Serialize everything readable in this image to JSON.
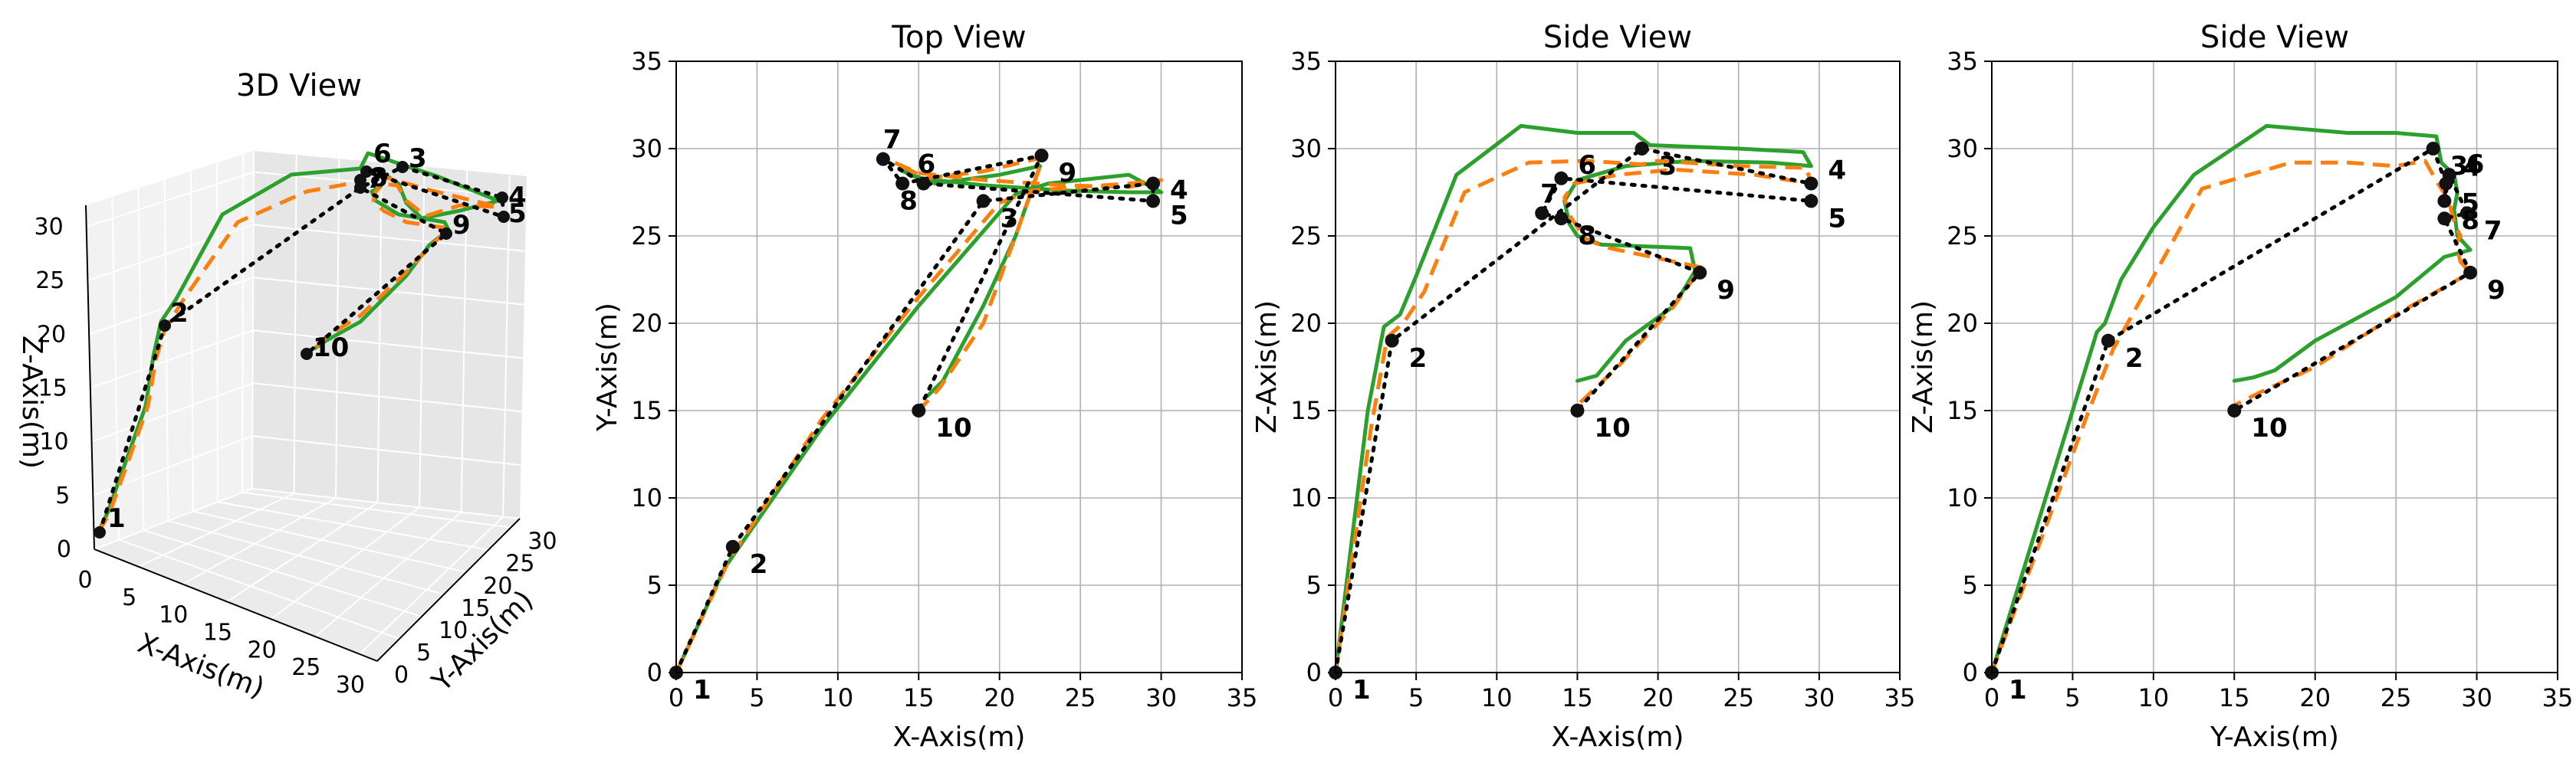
{
  "colors": {
    "reference": "#2ca02c",
    "estimate": "#ff7f0e",
    "waypoints": "#000000",
    "grid": "#b0b0b0"
  },
  "waypoint_labels": [
    "1",
    "2",
    "3",
    "4",
    "5",
    "6",
    "7",
    "8",
    "9",
    "10"
  ],
  "chart_data": [
    {
      "type": "line3d",
      "title": "3D View",
      "xlabel": "X-Axis(m)",
      "ylabel": "Y-Axis(m)",
      "zlabel": "Z-Axis(m)",
      "xticks": [
        "0",
        "5",
        "10",
        "15",
        "20",
        "25",
        "30"
      ],
      "yticks": [
        "0",
        "5",
        "10",
        "15",
        "20",
        "25",
        "30"
      ],
      "zticks": [
        "0",
        "5",
        "10",
        "15",
        "20",
        "25",
        "30"
      ],
      "xlim": [
        0,
        32
      ],
      "ylim": [
        0,
        32
      ],
      "zlim": [
        0,
        32
      ],
      "grid": true
    },
    {
      "type": "line",
      "title": "Top View",
      "xlabel": "X-Axis(m)",
      "ylabel": "Y-Axis(m)",
      "xticks": [
        "0",
        "5",
        "10",
        "15",
        "20",
        "25",
        "30",
        "35"
      ],
      "yticks": [
        "0",
        "5",
        "10",
        "15",
        "20",
        "25",
        "30",
        "35"
      ],
      "xlim": [
        0,
        35
      ],
      "ylim": [
        0,
        35
      ],
      "grid": true,
      "waypoints": [
        [
          0,
          0
        ],
        [
          3.5,
          7.2
        ],
        [
          19,
          27
        ],
        [
          29.5,
          28
        ],
        [
          29.5,
          27
        ],
        [
          15.3,
          28
        ],
        [
          12.8,
          29.4
        ],
        [
          14,
          28
        ],
        [
          22.6,
          29.6
        ],
        [
          15,
          15
        ]
      ],
      "series": [
        {
          "style": "solid",
          "x": [
            0,
            3,
            9,
            15,
            21,
            23,
            25,
            28,
            30,
            28,
            24,
            19,
            15,
            13.8,
            16,
            20,
            22.5,
            21,
            19,
            16.5,
            15.5
          ],
          "y": [
            0,
            6,
            14,
            21,
            27.4,
            28,
            28.2,
            28.5,
            27.5,
            27.5,
            27.6,
            27.9,
            28.3,
            28.8,
            28,
            28.5,
            29,
            25,
            21,
            16.7,
            15.8
          ]
        },
        {
          "style": "dashed",
          "x": [
            0,
            3.3,
            9,
            15,
            20,
            22,
            25,
            28,
            30,
            28,
            24,
            19,
            15,
            13.5,
            15.5,
            19,
            22.7,
            21,
            19,
            16.3,
            15.2
          ],
          "y": [
            0,
            6.5,
            14.5,
            21.5,
            26.9,
            27.6,
            27.8,
            28,
            28.2,
            27.8,
            27.9,
            28.2,
            28.6,
            29.2,
            28.3,
            28.7,
            29.5,
            25,
            20,
            16.3,
            15.2
          ]
        }
      ]
    },
    {
      "type": "line",
      "title": "Side View",
      "xlabel": "X-Axis(m)",
      "ylabel": "Z-Axis(m)",
      "xticks": [
        "0",
        "5",
        "10",
        "15",
        "20",
        "25",
        "30",
        "35"
      ],
      "yticks": [
        "0",
        "5",
        "10",
        "15",
        "20",
        "25",
        "30",
        "35"
      ],
      "xlim": [
        0,
        35
      ],
      "ylim": [
        0,
        35
      ],
      "grid": true,
      "waypoints": [
        [
          0,
          0
        ],
        [
          3.5,
          19
        ],
        [
          19,
          30
        ],
        [
          29.5,
          28
        ],
        [
          29.5,
          27
        ],
        [
          14,
          28.3
        ],
        [
          12.8,
          26.3
        ],
        [
          14,
          26
        ],
        [
          22.6,
          22.9
        ],
        [
          15,
          15
        ]
      ],
      "series": [
        {
          "style": "solid",
          "x": [
            0,
            2,
            3,
            4,
            5,
            7.5,
            11.5,
            15,
            18.5,
            19.5,
            25,
            29,
            29.5,
            27,
            22,
            18,
            15,
            14.2,
            14.5,
            15,
            16.5,
            22,
            22.3,
            21,
            18,
            16.2,
            15
          ],
          "y": [
            0,
            15,
            19.8,
            20.5,
            22.7,
            28.5,
            31.3,
            30.9,
            30.9,
            30.2,
            30,
            29.8,
            29,
            29.2,
            29.3,
            29,
            28.2,
            27,
            25.7,
            25,
            24.5,
            24.3,
            23,
            21,
            19,
            17,
            16.7
          ]
        },
        {
          "style": "dashed",
          "x": [
            0,
            2.2,
            3.2,
            4.2,
            5.5,
            8,
            12,
            15.5,
            19,
            20,
            25,
            29.2,
            29.5,
            26,
            21,
            17.5,
            14.8,
            14.2,
            14.5,
            15.5,
            17,
            22.7,
            21,
            17.5,
            15
          ],
          "y": [
            0,
            14,
            19.2,
            20,
            21.8,
            27.5,
            29.2,
            29.3,
            29.1,
            29.3,
            29,
            28.9,
            28,
            28.5,
            28.8,
            28.5,
            28,
            27.2,
            26.2,
            24.8,
            24.3,
            23.2,
            21,
            17.5,
            15.3
          ]
        }
      ]
    },
    {
      "type": "line",
      "title": "Side View",
      "xlabel": "Y-Axis(m)",
      "ylabel": "Z-Axis(m)",
      "xticks": [
        "0",
        "5",
        "10",
        "15",
        "20",
        "25",
        "30",
        "35"
      ],
      "yticks": [
        "0",
        "5",
        "10",
        "15",
        "20",
        "25",
        "30",
        "35"
      ],
      "xlim": [
        0,
        35
      ],
      "ylim": [
        0,
        35
      ],
      "grid": true,
      "waypoints": [
        [
          0,
          0
        ],
        [
          7.2,
          19
        ],
        [
          27.3,
          30
        ],
        [
          28.1,
          28
        ],
        [
          28,
          27
        ],
        [
          28.3,
          28.5
        ],
        [
          29.4,
          26.3
        ],
        [
          28,
          26
        ],
        [
          29.6,
          22.9
        ],
        [
          15,
          15
        ]
      ],
      "series": [
        {
          "style": "solid",
          "x": [
            0,
            5,
            6.5,
            7,
            8,
            10,
            12.5,
            17,
            22,
            25,
            27.5,
            27.8,
            28.6,
            28.8,
            28.6,
            28.8,
            29.6,
            28,
            25,
            20,
            17.5,
            16.2,
            15
          ],
          "y": [
            0,
            15,
            19.5,
            20,
            22.5,
            25.5,
            28.5,
            31.3,
            30.9,
            30.9,
            30.7,
            29.2,
            28.5,
            27.5,
            26.5,
            25,
            24.2,
            23.8,
            21.5,
            19,
            17.3,
            16.9,
            16.7
          ]
        },
        {
          "style": "dashed",
          "x": [
            0,
            6,
            7.5,
            9,
            13,
            18.5,
            22,
            25,
            26.8,
            27.6,
            28.3,
            28.4,
            28.7,
            29,
            28.7,
            29,
            29.6,
            25,
            20,
            16.5,
            15
          ],
          "y": [
            0,
            15,
            18.5,
            21,
            27.7,
            29.2,
            29.2,
            29,
            29.3,
            28,
            27,
            26.5,
            25.5,
            25,
            24.5,
            23.5,
            22.9,
            20.5,
            17.5,
            16,
            15.3
          ]
        }
      ]
    }
  ]
}
